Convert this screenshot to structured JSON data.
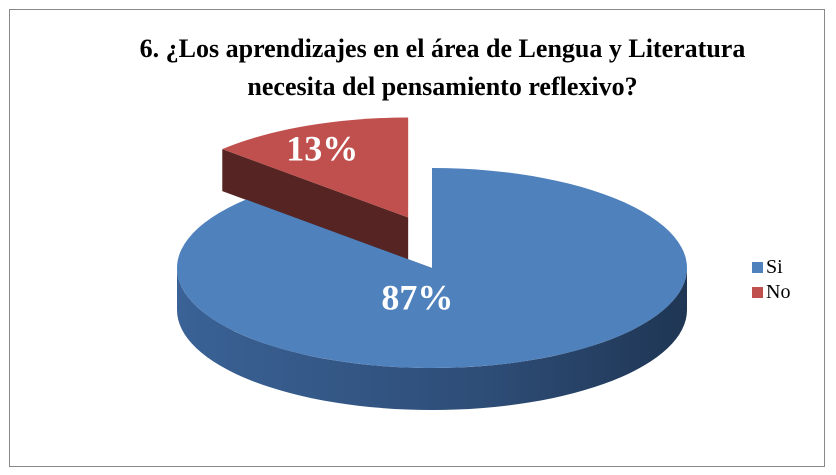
{
  "chart_data": {
    "type": "pie3d",
    "title": "6. ¿Los aprendizajes en el área de Lengua y Literatura necesita del pensamiento reflexivo?",
    "categories": [
      "Si",
      "No"
    ],
    "values": [
      87,
      13
    ],
    "value_labels": [
      "87%",
      "13%"
    ],
    "colors": [
      "#4f81bd",
      "#c0504d"
    ],
    "legend": "right"
  }
}
